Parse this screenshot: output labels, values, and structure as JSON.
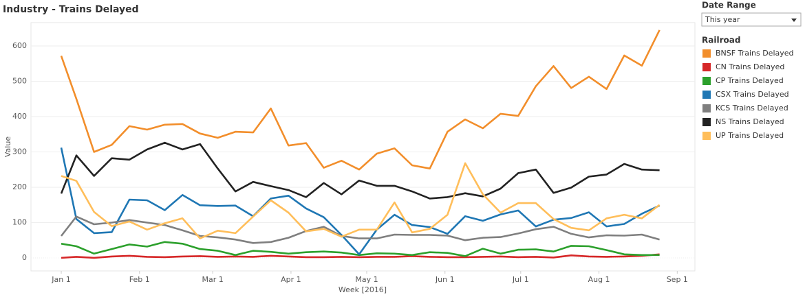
{
  "chart_data": {
    "type": "line",
    "title": "Industry - Trains Delayed",
    "x_label": "Week [2016]",
    "y_label": "Value",
    "x": [
      "2016-01-01",
      "2016-01-07",
      "2016-01-14",
      "2016-01-21",
      "2016-01-28",
      "2016-02-04",
      "2016-02-11",
      "2016-02-18",
      "2016-02-25",
      "2016-03-03",
      "2016-03-10",
      "2016-03-17",
      "2016-03-24",
      "2016-03-31",
      "2016-04-07",
      "2016-04-14",
      "2016-04-21",
      "2016-04-28",
      "2016-05-05",
      "2016-05-12",
      "2016-05-19",
      "2016-05-26",
      "2016-06-02",
      "2016-06-09",
      "2016-06-16",
      "2016-06-23",
      "2016-06-30",
      "2016-07-07",
      "2016-07-14",
      "2016-07-21",
      "2016-07-28",
      "2016-08-04",
      "2016-08-11",
      "2016-08-18",
      "2016-08-25"
    ],
    "xlim": [
      "2015-12-20",
      "2016-09-08"
    ],
    "xticks": [
      {
        "value": "2016-01-01",
        "label": "Jan 1"
      },
      {
        "value": "2016-02-01",
        "label": "Feb 1"
      },
      {
        "value": "2016-03-01",
        "label": "Mar 1"
      },
      {
        "value": "2016-04-01",
        "label": "Apr 1"
      },
      {
        "value": "2016-05-01",
        "label": "May 1"
      },
      {
        "value": "2016-06-01",
        "label": "Jun 1"
      },
      {
        "value": "2016-07-01",
        "label": "Jul 1"
      },
      {
        "value": "2016-08-01",
        "label": "Aug 1"
      },
      {
        "value": "2016-09-01",
        "label": "Sep 1"
      }
    ],
    "ylim": [
      -37,
      666
    ],
    "yticks": [
      0,
      100,
      200,
      300,
      400,
      500,
      600
    ],
    "grid": true,
    "filter": {
      "label": "Date Range",
      "value": "This year"
    },
    "legend_title": "Railroad",
    "series": [
      {
        "name": "BNSF Trains Delayed",
        "color": "#f28e2b",
        "values": [
          572,
          450,
          300,
          320,
          373,
          363,
          377,
          379,
          352,
          340,
          357,
          355,
          423,
          318,
          325,
          255,
          275,
          250,
          295,
          310,
          262,
          253,
          357,
          392,
          367,
          408,
          402,
          486,
          543,
          481,
          513,
          478,
          573,
          544,
          645
        ]
      },
      {
        "name": "CN Trains Delayed",
        "color": "#d62728",
        "values": [
          0,
          3,
          0,
          4,
          6,
          3,
          2,
          4,
          5,
          3,
          4,
          3,
          6,
          4,
          2,
          2,
          3,
          2,
          3,
          3,
          5,
          3,
          2,
          2,
          3,
          4,
          2,
          3,
          1,
          7,
          4,
          3,
          4,
          6,
          10
        ]
      },
      {
        "name": "CP Trains Delayed",
        "color": "#2ca02c",
        "values": [
          40,
          33,
          12,
          25,
          38,
          32,
          45,
          40,
          25,
          20,
          8,
          20,
          17,
          12,
          16,
          18,
          15,
          8,
          13,
          12,
          8,
          16,
          14,
          5,
          26,
          12,
          23,
          24,
          18,
          34,
          33,
          22,
          10,
          8,
          8
        ]
      },
      {
        "name": "CSX Trains Delayed",
        "color": "#1f77b4",
        "values": [
          312,
          110,
          70,
          73,
          165,
          163,
          135,
          178,
          149,
          147,
          148,
          118,
          168,
          176,
          140,
          115,
          65,
          10,
          80,
          122,
          93,
          87,
          68,
          118,
          105,
          123,
          134,
          89,
          108,
          113,
          129,
          89,
          96,
          125,
          148
        ]
      },
      {
        "name": "KCS Trains Delayed",
        "color": "#7f7f7f",
        "values": [
          62,
          117,
          95,
          100,
          107,
          100,
          93,
          78,
          62,
          58,
          52,
          42,
          45,
          57,
          76,
          88,
          62,
          55,
          55,
          66,
          65,
          65,
          63,
          50,
          57,
          59,
          69,
          81,
          88,
          68,
          58,
          64,
          63,
          66,
          52
        ]
      },
      {
        "name": "NS Trains Delayed",
        "color": "#222222",
        "values": [
          182,
          290,
          232,
          282,
          278,
          307,
          326,
          307,
          322,
          253,
          188,
          215,
          203,
          192,
          172,
          212,
          180,
          219,
          204,
          204,
          188,
          168,
          172,
          183,
          174,
          196,
          240,
          250,
          184,
          199,
          230,
          236,
          266,
          250,
          248
        ]
      },
      {
        "name": "UP Trains Delayed",
        "color": "#ffbe5a",
        "values": [
          232,
          218,
          130,
          90,
          103,
          80,
          98,
          112,
          55,
          77,
          70,
          117,
          163,
          128,
          75,
          82,
          60,
          80,
          80,
          157,
          72,
          82,
          122,
          268,
          180,
          128,
          155,
          155,
          110,
          85,
          78,
          112,
          122,
          112,
          150
        ]
      }
    ]
  }
}
